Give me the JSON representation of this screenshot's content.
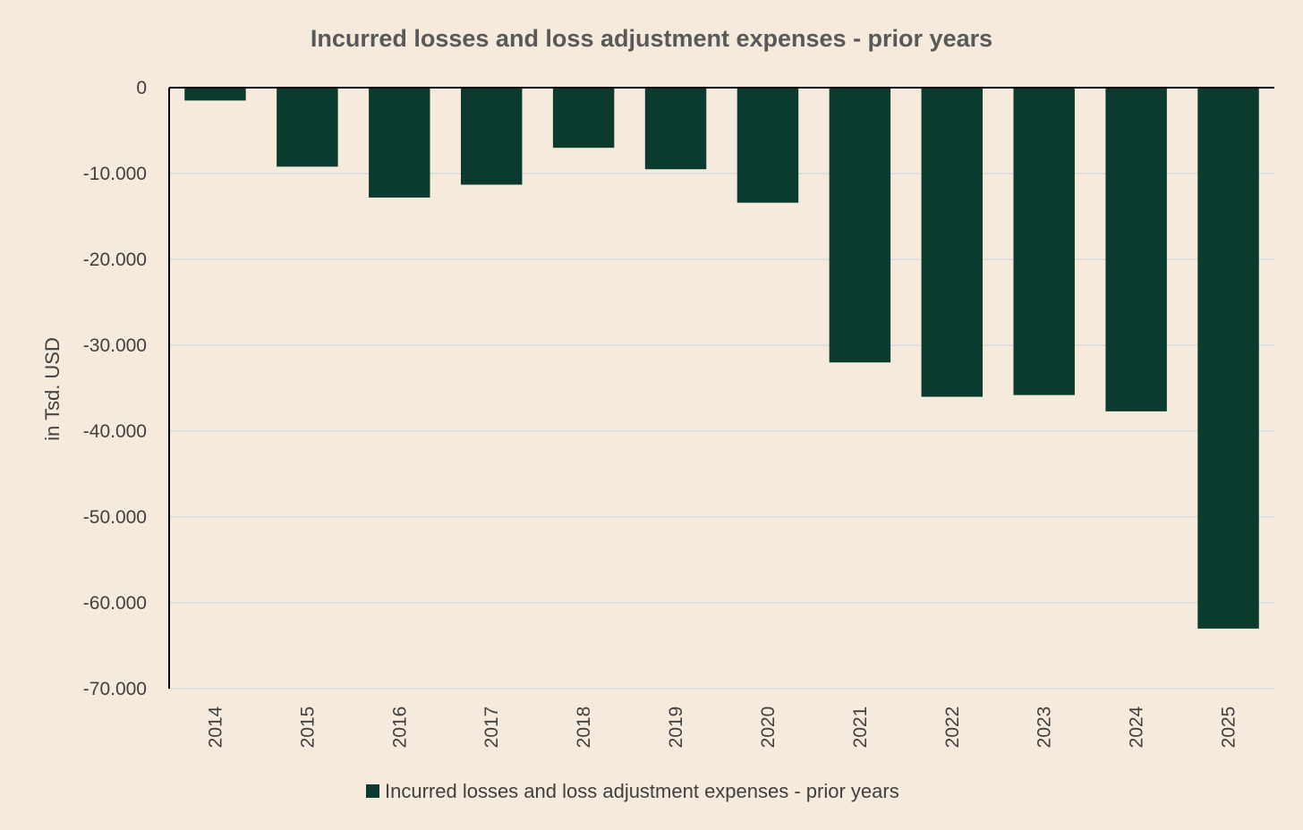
{
  "colors": {
    "background": "#f5eadb",
    "bar": "#0b3b2e",
    "gridline": "#d9d9d9",
    "axis": "#000000",
    "text": "#404040",
    "title": "#595959"
  },
  "chart_data": {
    "type": "bar",
    "title": "Incurred losses and loss adjustment expenses - prior years",
    "xlabel": "",
    "ylabel": "in Tsd. USD",
    "categories": [
      "2014",
      "2015",
      "2016",
      "2017",
      "2018",
      "2019",
      "2020",
      "2021",
      "2022",
      "2023",
      "2024",
      "2025"
    ],
    "series": [
      {
        "name": "Incurred losses and loss adjustment expenses - prior years",
        "values": [
          -1500,
          -9200,
          -12800,
          -11300,
          -7000,
          -9500,
          -13400,
          -32000,
          -36000,
          -35800,
          -37700,
          -63000
        ]
      }
    ],
    "ylim": [
      -70000,
      0
    ],
    "yticks": [
      0,
      -10000,
      -20000,
      -30000,
      -40000,
      -50000,
      -60000,
      -70000
    ],
    "ytick_labels": [
      "0",
      "-10.000",
      "-20.000",
      "-30.000",
      "-40.000",
      "-50.000",
      "-60.000",
      "-70.000"
    ],
    "grid": true,
    "legend_position": "bottom"
  }
}
